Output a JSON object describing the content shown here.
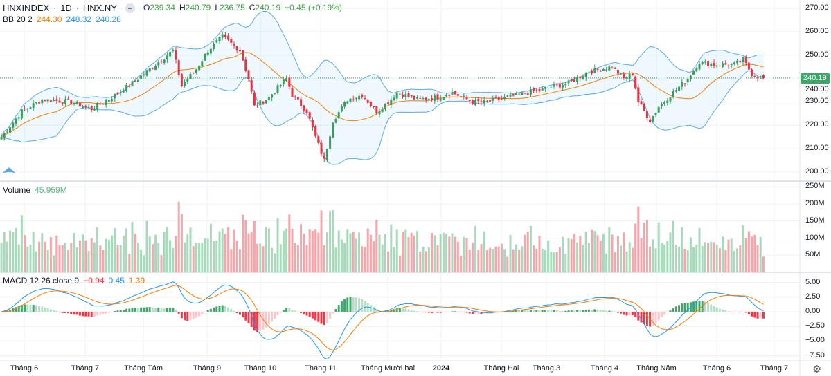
{
  "header": {
    "symbol": "HNXINDEX",
    "interval": "1D",
    "exchange": "HNX.NY",
    "open_label": "O",
    "open": "239.34",
    "high_label": "H",
    "high": "240.79",
    "low_label": "L",
    "low": "236.75",
    "close_label": "C",
    "close": "240.19",
    "change": "+0.45 (+0.19%)"
  },
  "bb": {
    "label": "BB 20 2",
    "basis": "244.30",
    "upper": "248.32",
    "lower": "240.28"
  },
  "volume": {
    "label": "Volume",
    "value": "45.959M"
  },
  "macd": {
    "label": "MACD 12 26 close 9",
    "hist": "−0.94",
    "macd": "0.45",
    "signal": "1.39"
  },
  "price_axis": [
    "270.00",
    "260.00",
    "250.00",
    "240.00",
    "230.00",
    "220.00",
    "210.00",
    "200.00"
  ],
  "last_price": "240.19",
  "volume_axis": [
    "250M",
    "200M",
    "150M",
    "100M",
    "50M"
  ],
  "macd_axis": [
    "5.00",
    "2.50",
    "0.00",
    "−2.50",
    "−5.00",
    "−7.50"
  ],
  "time_axis": [
    "Tháng 6",
    "Tháng 7",
    "Tháng Tám",
    "Tháng 9",
    "Tháng 10",
    "Tháng 11",
    "Tháng Mười hai",
    "2024",
    "Tháng Hai",
    "Tháng 3",
    "Tháng 4",
    "Tháng Năm",
    "Tháng 6",
    "Tháng 7"
  ],
  "colors": {
    "up": "#3a9d5d",
    "down": "#e5343f",
    "bb_band": "#5aa9e6",
    "bb_basis": "#f57c00",
    "macd": "#2196f3",
    "signal": "#f57c00"
  },
  "chart_data": {
    "type": "candlestick",
    "title": "HNXINDEX 1D",
    "ylim": [
      198,
      272
    ],
    "close_anchors": [
      [
        0,
        215
      ],
      [
        7,
        226
      ],
      [
        14,
        231
      ],
      [
        24,
        230
      ],
      [
        31,
        227
      ],
      [
        38,
        232
      ],
      [
        45,
        238
      ],
      [
        52,
        245
      ],
      [
        59,
        252
      ],
      [
        62,
        237
      ],
      [
        67,
        244
      ],
      [
        71,
        252
      ],
      [
        76,
        258
      ],
      [
        82,
        252
      ],
      [
        85,
        240
      ],
      [
        87,
        228
      ],
      [
        92,
        232
      ],
      [
        98,
        240
      ],
      [
        100,
        233
      ],
      [
        105,
        226
      ],
      [
        108,
        215
      ],
      [
        111,
        205
      ],
      [
        114,
        222
      ],
      [
        119,
        231
      ],
      [
        124,
        233
      ],
      [
        129,
        226
      ],
      [
        133,
        230
      ],
      [
        136,
        234
      ],
      [
        143,
        231
      ],
      [
        150,
        232
      ],
      [
        155,
        234
      ],
      [
        162,
        230
      ],
      [
        167,
        230
      ],
      [
        174,
        232
      ],
      [
        181,
        234
      ],
      [
        188,
        236
      ],
      [
        195,
        238
      ],
      [
        202,
        243
      ],
      [
        210,
        245
      ],
      [
        214,
        240
      ],
      [
        217,
        242
      ],
      [
        219,
        230
      ],
      [
        223,
        222
      ],
      [
        226,
        228
      ],
      [
        231,
        234
      ],
      [
        236,
        240
      ],
      [
        240,
        247
      ],
      [
        245,
        246
      ],
      [
        252,
        246
      ],
      [
        255,
        248
      ],
      [
        258,
        242
      ],
      [
        262,
        240
      ]
    ]
  }
}
